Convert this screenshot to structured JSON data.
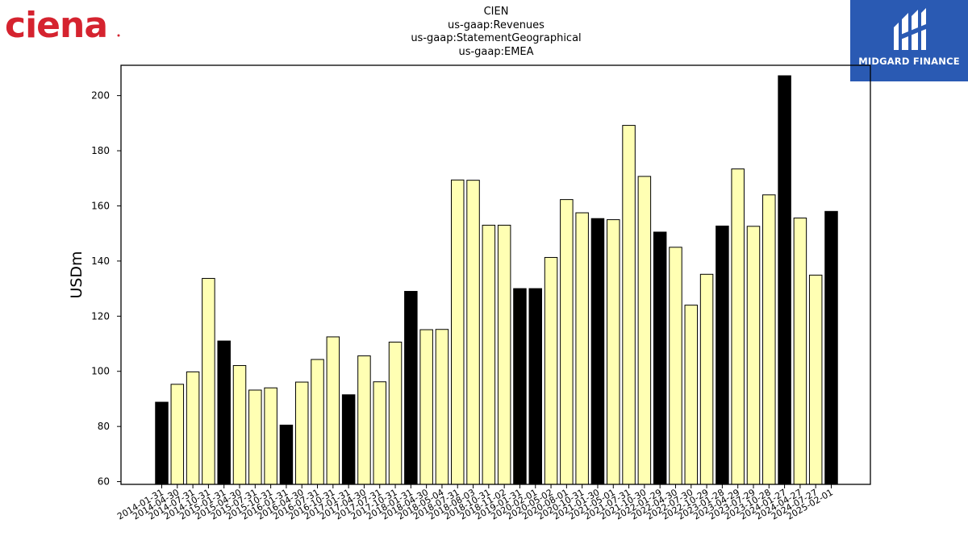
{
  "logos": {
    "left_brand": "ciena",
    "right_brand": "MIDGARD FINANCE",
    "right_bg": "#2a5ab3",
    "left_color": "#d5232f"
  },
  "chart_data": {
    "type": "bar",
    "title_lines": [
      "CIEN",
      "us-gaap:Revenues",
      "us-gaap:StatementGeographical",
      "us-gaap:EMEA"
    ],
    "xlabel": "",
    "ylabel": "USDm",
    "ylim": [
      59,
      211
    ],
    "yticks": [
      60,
      80,
      100,
      120,
      140,
      160,
      180,
      200
    ],
    "grid": false,
    "colors": {
      "quarter": "#ffffb3",
      "annual": "#000000"
    },
    "categories": [
      "2014-01-31",
      "2014-04-30",
      "2014-07-31",
      "2014-10-31",
      "2015-01-31",
      "2015-04-30",
      "2015-07-31",
      "2015-10-31",
      "2016-01-31",
      "2016-04-30",
      "2016-07-31",
      "2016-10-31",
      "2017-01-31",
      "2017-04-30",
      "2017-07-31",
      "2017-10-31",
      "2018-01-31",
      "2018-04-30",
      "2018-05-04",
      "2018-07-31",
      "2018-08-03",
      "2018-10-31",
      "2018-11-02",
      "2019-01-31",
      "2020-02-01",
      "2020-05-02",
      "2020-08-01",
      "2020-10-31",
      "2021-01-30",
      "2021-05-01",
      "2021-07-31",
      "2021-10-30",
      "2022-01-29",
      "2022-04-30",
      "2022-07-30",
      "2022-10-29",
      "2023-01-28",
      "2023-04-29",
      "2023-07-29",
      "2023-10-28",
      "2024-01-27",
      "2024-04-27",
      "2024-07-27",
      "2025-02-01"
    ],
    "tick_labels": [
      "2014-01-31",
      "2014-04-30",
      "2014-07-31",
      "2014-10-31",
      "2015-01-31",
      "2015-04-30",
      "2015-07-31",
      "2015-10-31",
      "2016-01-31",
      "2016-04-30",
      "2016-07-31",
      "2016-10-31",
      "2017-01-31",
      "2017-04-30",
      "2017-07-31",
      "2017-10-31",
      "2018-01-31",
      "2018-04-30",
      "2018-05-04",
      "2018-07-31",
      "2018-08-03",
      "2018-10-31",
      "2018-11-02",
      "2019-01-31",
      "2020-02-01",
      "2020-05-02",
      "2020-08-01",
      "2020-10-31",
      "2021-01-30",
      "2021-05-01",
      "2021-07-31",
      "2021-10-30",
      "2022-01-29",
      "2022-04-30",
      "2022-07-30",
      "2022-10-29",
      "2023-01-28",
      "2023-04-29",
      "2023-07-29",
      "2023-10-28",
      "2024-01-27",
      "2024-04-27",
      "2024-07-27",
      "2025-02-01"
    ],
    "values": [
      88.8,
      95.3,
      99.8,
      133.7,
      111.0,
      102.1,
      93.2,
      94.0,
      80.5,
      96.1,
      104.3,
      112.5,
      91.5,
      105.6,
      96.2,
      110.6,
      129.0,
      115.1,
      115.2,
      169.4,
      169.3,
      153.0,
      153.0,
      130.0,
      130.0,
      141.3,
      162.3,
      157.5,
      155.4,
      155.0,
      189.2,
      170.7,
      150.5,
      145.0,
      124.0,
      135.2,
      152.7,
      173.4,
      152.6,
      164.0,
      207.2,
      155.6,
      134.9,
      158.0
    ],
    "annual": [
      true,
      false,
      false,
      false,
      true,
      false,
      false,
      false,
      true,
      false,
      false,
      false,
      true,
      false,
      false,
      false,
      true,
      false,
      false,
      false,
      false,
      false,
      false,
      true,
      true,
      false,
      false,
      false,
      true,
      false,
      false,
      false,
      true,
      false,
      false,
      false,
      true,
      false,
      false,
      false,
      true,
      false,
      false,
      true
    ]
  }
}
